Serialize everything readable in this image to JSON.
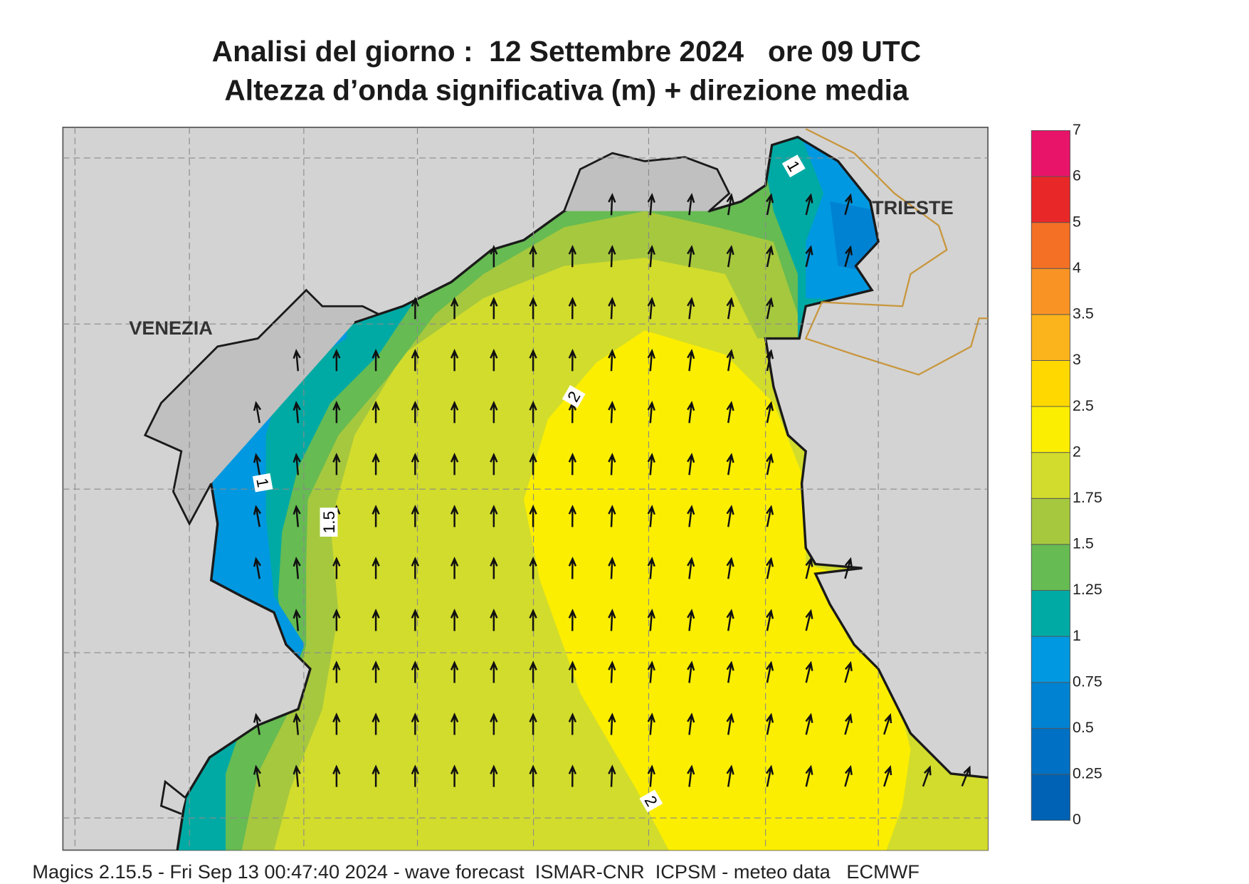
{
  "header": {
    "title": "Analisi del giorno :  12 Settembre 2024   ore 09 UTC",
    "subtitle": "Altezza d’onda significativa (m) + direzione media"
  },
  "map": {
    "places": [
      "VENEZIA",
      "TRIESTE"
    ],
    "contour_labels": [
      2,
      1,
      1.5,
      2,
      1
    ]
  },
  "legend": {
    "levels": [
      0,
      0.25,
      0.5,
      0.75,
      1,
      1.25,
      1.5,
      1.75,
      2,
      2.5,
      3,
      3.5,
      4,
      5,
      6,
      7
    ],
    "colors": [
      "#0062b4",
      "#0070c4",
      "#0082d2",
      "#0098e0",
      "#00aaa4",
      "#66bb52",
      "#a6c83e",
      "#d2dc2c",
      "#fbee00",
      "#ffd800",
      "#fbb41c",
      "#f99424",
      "#f37024",
      "#e82828",
      "#e8146a"
    ]
  },
  "footer": "Magics 2.15.5 - Fri Sep 13 00:47:40 2024 - wave forecast  ISMAR-CNR  ICPSM - meteo data   ECMWF"
}
